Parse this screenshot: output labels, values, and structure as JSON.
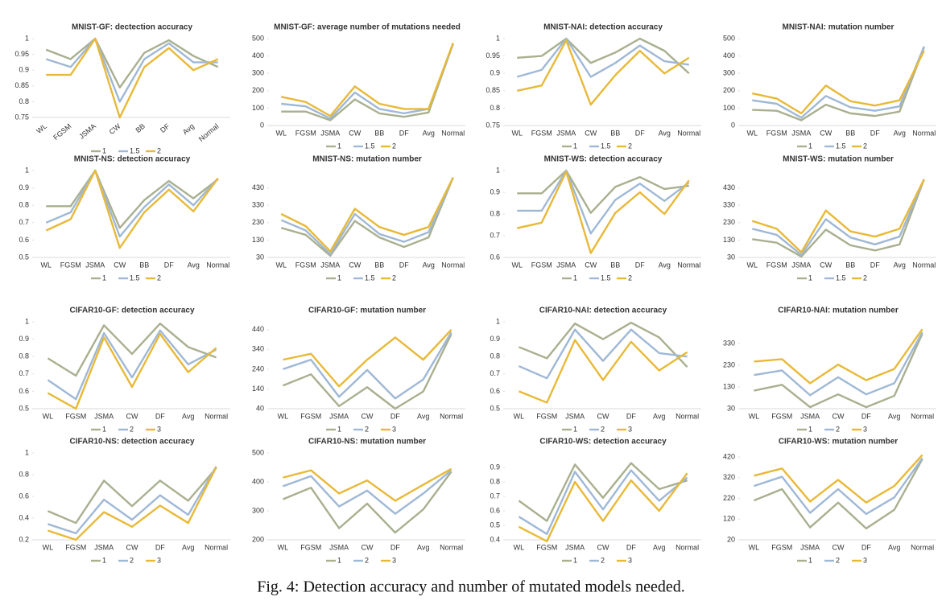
{
  "caption": "Fig. 4: Detection accuracy and number of mutated models needed.",
  "chart_data": [
    {
      "type": "line",
      "title": "MNIST-GF: dectection accuracy",
      "rotated_labels": true,
      "categories": [
        "WL",
        "FGSM",
        "JSMA",
        "CW",
        "BB",
        "DF",
        "Avg",
        "Normal"
      ],
      "ylim": [
        0.75,
        1
      ],
      "yticks": [
        0.75,
        0.8,
        0.85,
        0.9,
        0.95,
        1
      ],
      "series": [
        {
          "name": "1",
          "color": "#a8b08f",
          "values": [
            0.965,
            0.935,
            1.0,
            0.845,
            0.955,
            0.995,
            0.945,
            0.91
          ]
        },
        {
          "name": "1.5",
          "color": "#9fb8d6",
          "values": [
            0.935,
            0.91,
            1.0,
            0.8,
            0.935,
            0.985,
            0.925,
            0.925
          ]
        },
        {
          "name": "2",
          "color": "#e8b937",
          "values": [
            0.885,
            0.885,
            1.0,
            0.75,
            0.91,
            0.97,
            0.9,
            0.935
          ]
        }
      ]
    },
    {
      "type": "line",
      "title": "MNIST-GF: average number of mutations needed",
      "categories": [
        "WL",
        "FGSM",
        "JSMA",
        "CW",
        "BB",
        "DF",
        "Avg",
        "Normal"
      ],
      "ylim": [
        0,
        500
      ],
      "yticks": [
        0,
        100,
        200,
        300,
        400,
        500
      ],
      "series": [
        {
          "name": "1",
          "color": "#a8b08f",
          "values": [
            80,
            80,
            30,
            150,
            70,
            50,
            75,
            470
          ]
        },
        {
          "name": "1.5",
          "color": "#9fb8d6",
          "values": [
            125,
            110,
            40,
            190,
            95,
            70,
            95,
            470
          ]
        },
        {
          "name": "2",
          "color": "#e8b937",
          "values": [
            165,
            135,
            55,
            225,
            125,
            95,
            95,
            475
          ]
        }
      ]
    },
    {
      "type": "line",
      "title": "MNIST-NAI: detection accuracy",
      "categories": [
        "WL",
        "FGSM",
        "JSMA",
        "CW",
        "BB",
        "DF",
        "Avg",
        "Normal"
      ],
      "ylim": [
        0.75,
        1
      ],
      "yticks": [
        0.75,
        0.8,
        0.85,
        0.9,
        0.95,
        1
      ],
      "series": [
        {
          "name": "1",
          "color": "#a8b08f",
          "values": [
            0.945,
            0.95,
            1.0,
            0.93,
            0.96,
            1.0,
            0.965,
            0.9
          ]
        },
        {
          "name": "1.5",
          "color": "#9fb8d6",
          "values": [
            0.89,
            0.91,
            1.0,
            0.89,
            0.93,
            0.98,
            0.935,
            0.925
          ]
        },
        {
          "name": "2",
          "color": "#e8b937",
          "values": [
            0.85,
            0.865,
            0.995,
            0.81,
            0.895,
            0.965,
            0.9,
            0.945
          ]
        }
      ]
    },
    {
      "type": "line",
      "title": "MNIST-NAI: mutation number",
      "categories": [
        "WL",
        "FGSM",
        "JSMA",
        "CW",
        "BB",
        "DF",
        "Avg",
        "Normal"
      ],
      "ylim": [
        0,
        500
      ],
      "yticks": [
        0,
        100,
        200,
        300,
        400,
        500
      ],
      "series": [
        {
          "name": "1",
          "color": "#a8b08f",
          "values": [
            90,
            85,
            30,
            120,
            70,
            55,
            80,
            450
          ]
        },
        {
          "name": "1.5",
          "color": "#9fb8d6",
          "values": [
            145,
            125,
            45,
            170,
            105,
            85,
            110,
            455
          ]
        },
        {
          "name": "2",
          "color": "#e8b937",
          "values": [
            185,
            155,
            70,
            230,
            140,
            115,
            145,
            430
          ]
        }
      ]
    },
    {
      "type": "line",
      "title": "MNIST-NS: detection accuracy",
      "categories": [
        "WL",
        "FGSM",
        "JSMA",
        "CW",
        "BB",
        "DF",
        "Avg",
        "Normal"
      ],
      "ylim": [
        0.5,
        1
      ],
      "yticks": [
        0.5,
        0.6,
        0.7,
        0.8,
        0.9,
        1
      ],
      "series": [
        {
          "name": "1",
          "color": "#a8b08f",
          "values": [
            0.795,
            0.795,
            1.0,
            0.67,
            0.83,
            0.94,
            0.84,
            0.95
          ]
        },
        {
          "name": "1.5",
          "color": "#9fb8d6",
          "values": [
            0.7,
            0.76,
            1.0,
            0.62,
            0.79,
            0.92,
            0.8,
            0.955
          ]
        },
        {
          "name": "2",
          "color": "#e8b937",
          "values": [
            0.655,
            0.72,
            1.0,
            0.555,
            0.76,
            0.89,
            0.765,
            0.955
          ]
        }
      ]
    },
    {
      "type": "line",
      "title": "MNIST-NS: mutation number",
      "categories": [
        "WL",
        "FGSM",
        "JSMA",
        "CW",
        "BB",
        "DF",
        "Avg",
        "Normal"
      ],
      "ylim": [
        30,
        530
      ],
      "yticks": [
        30,
        130,
        230,
        330,
        430
      ],
      "series": [
        {
          "name": "1",
          "color": "#a8b08f",
          "values": [
            200,
            160,
            40,
            240,
            145,
            90,
            145,
            490
          ]
        },
        {
          "name": "1.5",
          "color": "#9fb8d6",
          "values": [
            245,
            185,
            50,
            280,
            165,
            120,
            175,
            490
          ]
        },
        {
          "name": "2",
          "color": "#e8b937",
          "values": [
            280,
            210,
            65,
            310,
            205,
            160,
            205,
            490
          ]
        }
      ]
    },
    {
      "type": "line",
      "title": "MNIST-WS: detection accuracy",
      "categories": [
        "WL",
        "FGSM",
        "JSMA",
        "CW",
        "BB",
        "DF",
        "Avg",
        "Normal"
      ],
      "ylim": [
        0.6,
        1
      ],
      "yticks": [
        0.6,
        0.7,
        0.8,
        0.9,
        1
      ],
      "series": [
        {
          "name": "1",
          "color": "#a8b08f",
          "values": [
            0.895,
            0.895,
            1.0,
            0.805,
            0.925,
            0.97,
            0.915,
            0.93
          ]
        },
        {
          "name": "1.5",
          "color": "#9fb8d6",
          "values": [
            0.815,
            0.815,
            1.0,
            0.71,
            0.865,
            0.94,
            0.86,
            0.945
          ]
        },
        {
          "name": "2",
          "color": "#e8b937",
          "values": [
            0.735,
            0.76,
            0.995,
            0.62,
            0.805,
            0.9,
            0.8,
            0.955
          ]
        }
      ]
    },
    {
      "type": "line",
      "title": "MNIST-WS: mutation number",
      "categories": [
        "WL",
        "FGSM",
        "JSMA",
        "CW",
        "BB",
        "DF",
        "Avg",
        "Normal"
      ],
      "ylim": [
        30,
        530
      ],
      "yticks": [
        30,
        130,
        230,
        330,
        430
      ],
      "series": [
        {
          "name": "1",
          "color": "#a8b08f",
          "values": [
            135,
            115,
            35,
            190,
            100,
            70,
            105,
            480
          ]
        },
        {
          "name": "1.5",
          "color": "#9fb8d6",
          "values": [
            195,
            160,
            45,
            250,
            145,
            105,
            150,
            480
          ]
        },
        {
          "name": "2",
          "color": "#e8b937",
          "values": [
            240,
            195,
            60,
            300,
            180,
            150,
            195,
            480
          ]
        }
      ]
    },
    {
      "type": "line",
      "title": "CIFAR10-GF: detection accuracy",
      "categories": [
        "WL",
        "FGSM",
        "JSMA",
        "CW",
        "DF",
        "Avg",
        "Normal"
      ],
      "ylim": [
        0.5,
        1
      ],
      "yticks": [
        0.5,
        0.6,
        0.7,
        0.8,
        0.9,
        1
      ],
      "series": [
        {
          "name": "1",
          "color": "#a8b08f",
          "values": [
            0.79,
            0.69,
            0.98,
            0.815,
            0.99,
            0.855,
            0.795
          ]
        },
        {
          "name": "2",
          "color": "#9fb8d6",
          "values": [
            0.665,
            0.555,
            0.935,
            0.68,
            0.95,
            0.755,
            0.84
          ]
        },
        {
          "name": "3",
          "color": "#e8b937",
          "values": [
            0.59,
            0.5,
            0.91,
            0.625,
            0.93,
            0.71,
            0.85
          ]
        }
      ]
    },
    {
      "type": "line",
      "title": "CIFAR10-GF: mutation number",
      "categories": [
        "WL",
        "FGSM",
        "JSMA",
        "CW",
        "DF",
        "Avg",
        "Normal"
      ],
      "ylim": [
        40,
        480
      ],
      "yticks": [
        40,
        140,
        240,
        340,
        440
      ],
      "series": [
        {
          "name": "1",
          "color": "#a8b08f",
          "values": [
            157,
            214,
            53,
            149,
            40,
            127,
            418
          ]
        },
        {
          "name": "2",
          "color": "#9fb8d6",
          "values": [
            240,
            288,
            100,
            236,
            92,
            188,
            427
          ]
        },
        {
          "name": "3",
          "color": "#e8b937",
          "values": [
            288,
            318,
            153,
            288,
            401,
            288,
            440
          ]
        }
      ]
    },
    {
      "type": "line",
      "title": "CIFAR10-NAI: detection accuracy",
      "categories": [
        "WL",
        "FGSM",
        "JSMA",
        "CW",
        "DF",
        "Avg",
        "Normal"
      ],
      "ylim": [
        0.5,
        1
      ],
      "yticks": [
        0.5,
        0.6,
        0.7,
        0.8,
        0.9,
        1
      ],
      "series": [
        {
          "name": "1",
          "color": "#a8b08f",
          "values": [
            0.855,
            0.79,
            0.99,
            0.9,
            0.995,
            0.91,
            0.74
          ]
        },
        {
          "name": "2",
          "color": "#9fb8d6",
          "values": [
            0.745,
            0.675,
            0.955,
            0.775,
            0.955,
            0.82,
            0.8
          ]
        },
        {
          "name": "3",
          "color": "#e8b937",
          "values": [
            0.6,
            0.535,
            0.895,
            0.665,
            0.885,
            0.72,
            0.825
          ]
        }
      ]
    },
    {
      "type": "line",
      "title": "CIFAR10-NAI: mutation number",
      "categories": [
        "WL",
        "FGSM",
        "JSMA",
        "CW",
        "DF",
        "Avg",
        "Normal"
      ],
      "ylim": [
        30,
        430
      ],
      "yticks": [
        30,
        130,
        230,
        330
      ],
      "series": [
        {
          "name": "1",
          "color": "#a8b08f",
          "values": [
            113,
            140,
            37,
            96,
            37,
            89,
            375
          ]
        },
        {
          "name": "2",
          "color": "#9fb8d6",
          "values": [
            185,
            206,
            92,
            175,
            96,
            147,
            382
          ]
        },
        {
          "name": "3",
          "color": "#e8b937",
          "values": [
            247,
            258,
            147,
            233,
            161,
            213,
            396
          ]
        }
      ]
    },
    {
      "type": "line",
      "title": "CIFAR10-NS: detection accuracy",
      "categories": [
        "WL",
        "FGSM",
        "JSMA",
        "CW",
        "DF",
        "Avg",
        "Normal"
      ],
      "ylim": [
        0.2,
        1
      ],
      "yticks": [
        0.2,
        0.4,
        0.6,
        0.8,
        1
      ],
      "series": [
        {
          "name": "1",
          "color": "#a8b08f",
          "values": [
            0.465,
            0.355,
            0.745,
            0.51,
            0.745,
            0.56,
            0.86
          ]
        },
        {
          "name": "2",
          "color": "#9fb8d6",
          "values": [
            0.345,
            0.26,
            0.57,
            0.385,
            0.61,
            0.43,
            0.875
          ]
        },
        {
          "name": "3",
          "color": "#e8b937",
          "values": [
            0.285,
            0.2,
            0.455,
            0.32,
            0.515,
            0.355,
            0.87
          ]
        }
      ]
    },
    {
      "type": "line",
      "title": "CIFAR10-NS: mutation number",
      "categories": [
        "WL",
        "FGSM",
        "JSMA",
        "CW",
        "DF",
        "Avg",
        "Normal"
      ],
      "ylim": [
        200,
        500
      ],
      "yticks": [
        200,
        300,
        400,
        500
      ],
      "series": [
        {
          "name": "1",
          "color": "#a8b08f",
          "values": [
            340,
            380,
            240,
            325,
            225,
            305,
            435
          ]
        },
        {
          "name": "2",
          "color": "#9fb8d6",
          "values": [
            385,
            420,
            315,
            370,
            290,
            360,
            440
          ]
        },
        {
          "name": "3",
          "color": "#e8b937",
          "values": [
            415,
            440,
            360,
            405,
            335,
            390,
            445
          ]
        }
      ]
    },
    {
      "type": "line",
      "title": "CIFAR10-WS: detection accuracy",
      "categories": [
        "WL",
        "FGSM",
        "JSMA",
        "CW",
        "DF",
        "Avg",
        "Normal"
      ],
      "ylim": [
        0.4,
        1
      ],
      "yticks": [
        0.4,
        0.5,
        0.6,
        0.7,
        0.8,
        0.9
      ],
      "series": [
        {
          "name": "1",
          "color": "#a8b08f",
          "values": [
            0.67,
            0.53,
            0.92,
            0.69,
            0.93,
            0.75,
            0.81
          ]
        },
        {
          "name": "2",
          "color": "#9fb8d6",
          "values": [
            0.56,
            0.44,
            0.87,
            0.61,
            0.88,
            0.67,
            0.83
          ]
        },
        {
          "name": "3",
          "color": "#e8b937",
          "values": [
            0.49,
            0.39,
            0.8,
            0.53,
            0.81,
            0.6,
            0.86
          ]
        }
      ]
    },
    {
      "type": "line",
      "title": "CIFAR10-WS: mutation number",
      "categories": [
        "WL",
        "FGSM",
        "JSMA",
        "CW",
        "DF",
        "Avg",
        "Normal"
      ],
      "ylim": [
        20,
        440
      ],
      "yticks": [
        20,
        120,
        220,
        320,
        420
      ],
      "series": [
        {
          "name": "1",
          "color": "#a8b08f",
          "values": [
            210,
            265,
            80,
            200,
            75,
            165,
            410
          ]
        },
        {
          "name": "2",
          "color": "#9fb8d6",
          "values": [
            280,
            325,
            150,
            265,
            145,
            225,
            415
          ]
        },
        {
          "name": "3",
          "color": "#e8b937",
          "values": [
            330,
            365,
            205,
            310,
            200,
            280,
            430
          ]
        }
      ]
    }
  ]
}
